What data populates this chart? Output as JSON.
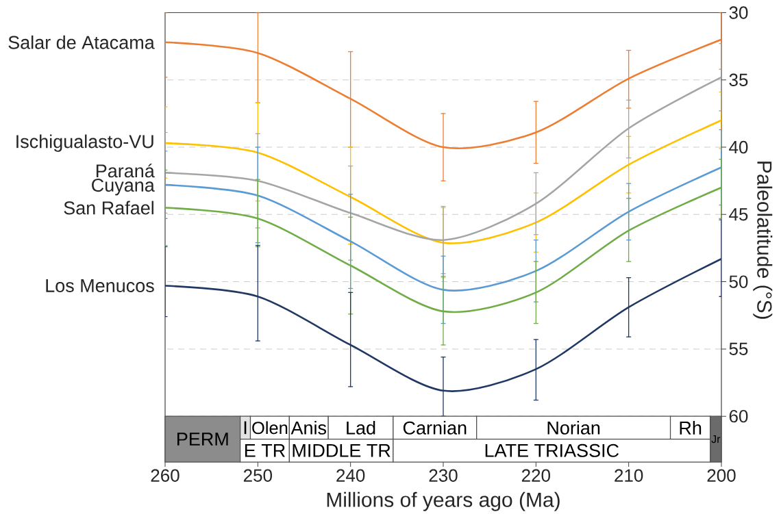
{
  "chart_data": {
    "type": "line",
    "xlabel": "Millions of years ago (Ma)",
    "ylabel": "Paleolatitude (°S)",
    "x": [
      260,
      250,
      240,
      230,
      220,
      210,
      200
    ],
    "xlim": [
      260,
      200
    ],
    "xticks": [
      260,
      250,
      240,
      230,
      220,
      210,
      200
    ],
    "ylim": [
      63.4,
      30
    ],
    "yticks": [
      30,
      35,
      40,
      45,
      50,
      55,
      60
    ],
    "grid": "y",
    "marker": "none",
    "line_style": "solid",
    "series": [
      {
        "name": "Salar de Atacama",
        "color": "#ed7d31",
        "values": [
          32.2,
          33.0,
          36.4,
          40.0,
          38.9,
          34.9,
          32.0
        ],
        "errors": [
          [
            30,
            34.8
          ],
          [
            30,
            36.7
          ],
          [
            32.9,
            40.0
          ],
          [
            37.5,
            42.5
          ],
          [
            36.6,
            41.2
          ],
          [
            32.8,
            37.1
          ],
          [
            30,
            34.2
          ]
        ]
      },
      {
        "name": "Ischigualasto-VU",
        "color": "#ffc000",
        "values": [
          39.7,
          40.4,
          43.7,
          47.1,
          45.6,
          41.3,
          38.0
        ],
        "errors": [
          [
            37.0,
            42.3
          ],
          [
            36.7,
            44.0
          ],
          [
            40.0,
            47.2
          ],
          [
            44.5,
            49.7
          ],
          [
            43.4,
            47.8
          ],
          [
            39.2,
            43.4
          ],
          [
            35.9,
            40.1
          ]
        ]
      },
      {
        "name": "Paraná",
        "color": "#a5a5a5",
        "values": [
          41.9,
          42.5,
          44.9,
          46.9,
          44.2,
          38.6,
          34.8
        ],
        "errors": [
          [
            38.9,
            44.9
          ],
          [
            39.0,
            46.0
          ],
          [
            41.4,
            48.4
          ],
          [
            44.4,
            49.4
          ],
          [
            41.9,
            46.5
          ],
          [
            36.5,
            40.8
          ],
          [
            32.3,
            37.3
          ]
        ]
      },
      {
        "name": "Cuyana",
        "color": "#5b9bd5",
        "values": [
          42.8,
          43.6,
          47.0,
          50.6,
          49.2,
          44.8,
          41.5
        ],
        "errors": [
          [
            40.3,
            45.3
          ],
          [
            40.0,
            47.1
          ],
          [
            43.5,
            50.5
          ],
          [
            48.1,
            53.1
          ],
          [
            46.9,
            51.5
          ],
          [
            42.7,
            46.9
          ],
          [
            38.7,
            44.3
          ]
        ]
      },
      {
        "name": "San Rafael",
        "color": "#70ad47",
        "values": [
          44.5,
          45.3,
          48.8,
          52.2,
          50.8,
          46.2,
          43.0
        ],
        "errors": [
          [
            41.7,
            47.3
          ],
          [
            42.4,
            47.4
          ],
          [
            45.2,
            52.4
          ],
          [
            49.6,
            54.7
          ],
          [
            48.5,
            53.1
          ],
          [
            43.8,
            48.5
          ],
          [
            40.9,
            45.3
          ]
        ]
      },
      {
        "name": "Los Menucos",
        "color": "#203864",
        "values": [
          50.3,
          51.1,
          54.7,
          58.1,
          56.5,
          51.9,
          48.3
        ],
        "errors": [
          [
            47.4,
            52.6
          ],
          [
            47.3,
            54.4
          ],
          [
            50.8,
            57.8
          ],
          [
            55.6,
            60
          ],
          [
            54.3,
            58.8
          ],
          [
            49.7,
            54.1
          ],
          [
            45.4,
            51.1
          ]
        ]
      }
    ],
    "bands": [
      {
        "axis": "x",
        "from": 260,
        "to": 251.9,
        "label": "PERM",
        "color": "#8c8c8c"
      },
      {
        "axis": "x",
        "from": 251.9,
        "to": 250.8,
        "label": "I",
        "color": "#e3e3e3"
      },
      {
        "axis": "x",
        "from": 250.8,
        "to": 246.6,
        "label": "Olen"
      },
      {
        "axis": "x",
        "from": 246.6,
        "to": 242.4,
        "label": "Anis"
      },
      {
        "axis": "x",
        "from": 242.4,
        "to": 235.4,
        "label": "Lad"
      },
      {
        "axis": "x",
        "from": 235.4,
        "to": 226.4,
        "label": "Carnian"
      },
      {
        "axis": "x",
        "from": 226.4,
        "to": 205.5,
        "label": "Norian"
      },
      {
        "axis": "x",
        "from": 205.5,
        "to": 201.2,
        "label": "Rh"
      },
      {
        "axis": "x",
        "from": 201.2,
        "to": 200,
        "label": "Jr",
        "color": "#6b6b6b"
      },
      {
        "axis": "x",
        "from": 251.9,
        "to": 246.6,
        "label": "E TR"
      },
      {
        "axis": "x",
        "from": 246.6,
        "to": 235.4,
        "label": "MIDDLE TR"
      },
      {
        "axis": "x",
        "from": 235.4,
        "to": 201.2,
        "label": "LATE TRIASSIC"
      }
    ]
  }
}
